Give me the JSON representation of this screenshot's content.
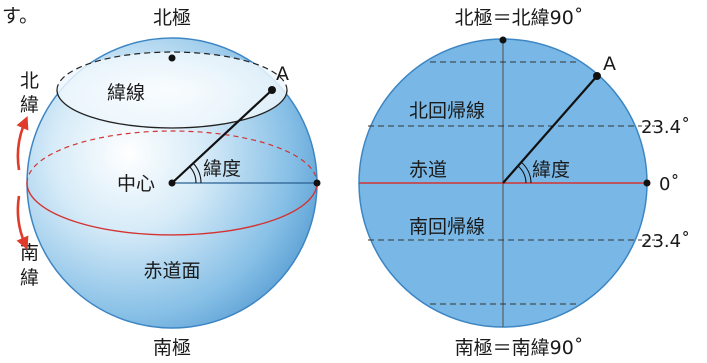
{
  "stray_text": "す。",
  "left_globe": {
    "north_pole": "北極",
    "south_pole": "南極",
    "latitude_line": "緯線",
    "point": "A",
    "center": "中心",
    "latitude": "緯度",
    "equatorial_plane": "赤道面",
    "north_latitude": "北\n緯",
    "south_latitude": "南\n緯"
  },
  "right_globe": {
    "north_pole": "北極＝北緯90˚",
    "south_pole": "南極＝南緯90˚",
    "point": "A",
    "tropic_of_cancer": "北回帰線",
    "equator": "赤道",
    "latitude": "緯度",
    "tropic_of_capricorn": "南回帰線",
    "lat_north": "23.4˚",
    "lat_zero": "0˚",
    "lat_south": "23.4˚"
  },
  "colors": {
    "sphere": "#6fb0e0",
    "equator": "#d33333",
    "arrow": "#e03a2a",
    "lines": "#222222"
  }
}
